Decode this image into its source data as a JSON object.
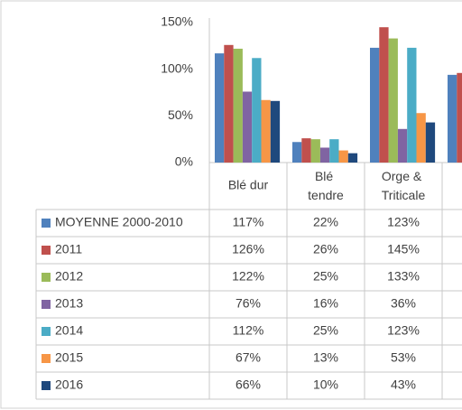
{
  "chart_data": {
    "type": "bar",
    "categories": [
      "Blé dur",
      "Blé tendre",
      "Orge & Triticale",
      null
    ],
    "ylim": [
      0,
      150
    ],
    "yticks": [
      {
        "value": 0,
        "label": "0%"
      },
      {
        "value": 50,
        "label": "50%"
      },
      {
        "value": 100,
        "label": "100%"
      },
      {
        "value": 150,
        "label": "150%"
      }
    ],
    "series": [
      {
        "name": "MOYENNE 2000-2010",
        "color": "#4f81bd",
        "values": [
          117,
          22,
          123,
          94
        ],
        "value_labels": [
          "117%",
          "22%",
          "123%",
          null
        ]
      },
      {
        "name": "2011",
        "color": "#c0504d",
        "values": [
          126,
          26,
          145,
          96
        ],
        "value_labels": [
          "126%",
          "26%",
          "145%",
          null
        ]
      },
      {
        "name": "2012",
        "color": "#9bbb59",
        "values": [
          122,
          25,
          133,
          null
        ],
        "value_labels": [
          "122%",
          "25%",
          "133%",
          null
        ]
      },
      {
        "name": "2013",
        "color": "#8064a2",
        "values": [
          76,
          16,
          36,
          null
        ],
        "value_labels": [
          "76%",
          "16%",
          "36%",
          null
        ]
      },
      {
        "name": "2014",
        "color": "#4bacc6",
        "values": [
          112,
          25,
          123,
          null
        ],
        "value_labels": [
          "112%",
          "25%",
          "123%",
          null
        ]
      },
      {
        "name": "2015",
        "color": "#f79646",
        "values": [
          67,
          13,
          53,
          null
        ],
        "value_labels": [
          "67%",
          "13%",
          "53%",
          null
        ]
      },
      {
        "name": "2016",
        "color": "#1f497d",
        "values": [
          66,
          10,
          43,
          null
        ],
        "value_labels": [
          "66%",
          "10%",
          "43%",
          null
        ]
      }
    ]
  }
}
